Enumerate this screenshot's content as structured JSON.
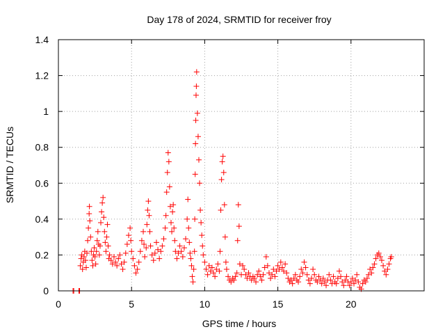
{
  "chart_data": {
    "type": "scatter",
    "title": "Day 178 of 2024, SRMTID for receiver froy",
    "xlabel": "GPS time / hours",
    "ylabel": "SRMTID / TECUs",
    "xlim": [
      0,
      25
    ],
    "ylim": [
      0,
      1.4
    ],
    "xticks": [
      0,
      5,
      10,
      15,
      20
    ],
    "xtick_labels": [
      "0",
      "5",
      "10",
      "15",
      "20"
    ],
    "yticks": [
      0,
      0.2,
      0.4,
      0.6,
      0.8,
      1.0,
      1.2,
      1.4
    ],
    "ytick_labels": [
      "0",
      "0.2",
      "0.4",
      "0.6",
      "0.8",
      "1",
      "1.2",
      "1.4"
    ],
    "grid": true,
    "marker": "plus",
    "color": "#ff0000",
    "series": [
      {
        "name": "SRMTID",
        "points": [
          [
            1.0,
            0.0
          ],
          [
            1.05,
            0.0
          ],
          [
            1.4,
            0.0
          ],
          [
            1.45,
            0.0
          ],
          [
            1.5,
            0.14
          ],
          [
            1.55,
            0.18
          ],
          [
            1.6,
            0.2
          ],
          [
            1.65,
            0.12
          ],
          [
            1.7,
            0.16
          ],
          [
            1.75,
            0.19
          ],
          [
            1.8,
            0.22
          ],
          [
            1.85,
            0.17
          ],
          [
            1.9,
            0.13
          ],
          [
            1.95,
            0.21
          ],
          [
            2.0,
            0.28
          ],
          [
            2.05,
            0.35
          ],
          [
            2.1,
            0.43
          ],
          [
            2.12,
            0.47
          ],
          [
            2.15,
            0.39
          ],
          [
            2.2,
            0.3
          ],
          [
            2.25,
            0.22
          ],
          [
            2.3,
            0.17
          ],
          [
            2.35,
            0.14
          ],
          [
            2.4,
            0.2
          ],
          [
            2.45,
            0.24
          ],
          [
            2.5,
            0.19
          ],
          [
            2.55,
            0.15
          ],
          [
            2.6,
            0.22
          ],
          [
            2.65,
            0.28
          ],
          [
            2.7,
            0.33
          ],
          [
            2.75,
            0.26
          ],
          [
            2.8,
            0.2
          ],
          [
            2.85,
            0.25
          ],
          [
            2.9,
            0.38
          ],
          [
            2.95,
            0.44
          ],
          [
            3.0,
            0.49
          ],
          [
            3.05,
            0.52
          ],
          [
            3.1,
            0.41
          ],
          [
            3.15,
            0.33
          ],
          [
            3.2,
            0.27
          ],
          [
            3.25,
            0.22
          ],
          [
            3.3,
            0.3
          ],
          [
            3.35,
            0.37
          ],
          [
            3.4,
            0.25
          ],
          [
            3.45,
            0.18
          ],
          [
            3.5,
            0.2
          ],
          [
            3.6,
            0.17
          ],
          [
            3.7,
            0.15
          ],
          [
            3.8,
            0.19
          ],
          [
            3.9,
            0.16
          ],
          [
            4.0,
            0.14
          ],
          [
            4.1,
            0.18
          ],
          [
            4.2,
            0.2
          ],
          [
            4.3,
            0.15
          ],
          [
            4.4,
            0.12
          ],
          [
            4.5,
            0.16
          ],
          [
            4.6,
            0.21
          ],
          [
            4.7,
            0.26
          ],
          [
            4.8,
            0.31
          ],
          [
            4.9,
            0.35
          ],
          [
            4.95,
            0.28
          ],
          [
            5.0,
            0.22
          ],
          [
            5.1,
            0.18
          ],
          [
            5.2,
            0.14
          ],
          [
            5.3,
            0.1
          ],
          [
            5.4,
            0.12
          ],
          [
            5.5,
            0.16
          ],
          [
            5.6,
            0.22
          ],
          [
            5.7,
            0.28
          ],
          [
            5.8,
            0.33
          ],
          [
            5.85,
            0.26
          ],
          [
            5.9,
            0.19
          ],
          [
            6.0,
            0.24
          ],
          [
            6.05,
            0.37
          ],
          [
            6.1,
            0.45
          ],
          [
            6.15,
            0.5
          ],
          [
            6.2,
            0.42
          ],
          [
            6.25,
            0.33
          ],
          [
            6.3,
            0.25
          ],
          [
            6.4,
            0.2
          ],
          [
            6.5,
            0.17
          ],
          [
            6.6,
            0.21
          ],
          [
            6.7,
            0.27
          ],
          [
            6.8,
            0.23
          ],
          [
            6.9,
            0.18
          ],
          [
            7.0,
            0.22
          ],
          [
            7.1,
            0.25
          ],
          [
            7.2,
            0.29
          ],
          [
            7.3,
            0.35
          ],
          [
            7.35,
            0.42
          ],
          [
            7.4,
            0.55
          ],
          [
            7.45,
            0.66
          ],
          [
            7.5,
            0.77
          ],
          [
            7.55,
            0.72
          ],
          [
            7.6,
            0.58
          ],
          [
            7.65,
            0.47
          ],
          [
            7.7,
            0.38
          ],
          [
            7.75,
            0.33
          ],
          [
            7.8,
            0.44
          ],
          [
            7.85,
            0.48
          ],
          [
            7.9,
            0.35
          ],
          [
            7.95,
            0.28
          ],
          [
            8.0,
            0.22
          ],
          [
            8.1,
            0.18
          ],
          [
            8.2,
            0.21
          ],
          [
            8.3,
            0.25
          ],
          [
            8.4,
            0.22
          ],
          [
            8.5,
            0.19
          ],
          [
            8.6,
            0.24
          ],
          [
            8.7,
            0.29
          ],
          [
            8.8,
            0.4
          ],
          [
            8.85,
            0.51
          ],
          [
            8.9,
            0.35
          ],
          [
            8.95,
            0.27
          ],
          [
            9.0,
            0.21
          ],
          [
            9.05,
            0.18
          ],
          [
            9.1,
            0.14
          ],
          [
            9.15,
            0.08
          ],
          [
            9.2,
            0.05
          ],
          [
            9.25,
            0.12
          ],
          [
            9.3,
            0.22
          ],
          [
            9.32,
            0.4
          ],
          [
            9.35,
            0.65
          ],
          [
            9.37,
            0.82
          ],
          [
            9.39,
            0.95
          ],
          [
            9.41,
            1.09
          ],
          [
            9.43,
            1.14
          ],
          [
            9.45,
            1.22
          ],
          [
            9.5,
            0.99
          ],
          [
            9.55,
            0.86
          ],
          [
            9.6,
            0.73
          ],
          [
            9.65,
            0.6
          ],
          [
            9.7,
            0.45
          ],
          [
            9.75,
            0.38
          ],
          [
            9.8,
            0.31
          ],
          [
            9.85,
            0.25
          ],
          [
            9.9,
            0.2
          ],
          [
            10.0,
            0.16
          ],
          [
            10.1,
            0.12
          ],
          [
            10.2,
            0.09
          ],
          [
            10.3,
            0.14
          ],
          [
            10.4,
            0.11
          ],
          [
            10.5,
            0.13
          ],
          [
            10.6,
            0.1
          ],
          [
            10.7,
            0.08
          ],
          [
            10.8,
            0.12
          ],
          [
            10.9,
            0.15
          ],
          [
            11.0,
            0.11
          ],
          [
            11.05,
            0.22
          ],
          [
            11.1,
            0.45
          ],
          [
            11.15,
            0.62
          ],
          [
            11.2,
            0.72
          ],
          [
            11.25,
            0.75
          ],
          [
            11.3,
            0.66
          ],
          [
            11.35,
            0.48
          ],
          [
            11.4,
            0.3
          ],
          [
            11.45,
            0.16
          ],
          [
            11.5,
            0.12
          ],
          [
            11.6,
            0.08
          ],
          [
            11.7,
            0.06
          ],
          [
            11.8,
            0.05
          ],
          [
            11.9,
            0.07
          ],
          [
            12.0,
            0.06
          ],
          [
            12.1,
            0.08
          ],
          [
            12.2,
            0.1
          ],
          [
            12.25,
            0.28
          ],
          [
            12.3,
            0.48
          ],
          [
            12.35,
            0.36
          ],
          [
            12.4,
            0.15
          ],
          [
            12.5,
            0.09
          ],
          [
            12.6,
            0.14
          ],
          [
            12.7,
            0.12
          ],
          [
            12.8,
            0.09
          ],
          [
            12.9,
            0.07
          ],
          [
            13.0,
            0.1
          ],
          [
            13.1,
            0.08
          ],
          [
            13.2,
            0.06
          ],
          [
            13.3,
            0.08
          ],
          [
            13.4,
            0.07
          ],
          [
            13.5,
            0.05
          ],
          [
            13.6,
            0.09
          ],
          [
            13.7,
            0.11
          ],
          [
            13.8,
            0.08
          ],
          [
            13.9,
            0.06
          ],
          [
            14.0,
            0.09
          ],
          [
            14.1,
            0.13
          ],
          [
            14.2,
            0.19
          ],
          [
            14.3,
            0.14
          ],
          [
            14.4,
            0.1
          ],
          [
            14.5,
            0.07
          ],
          [
            14.6,
            0.09
          ],
          [
            14.7,
            0.12
          ],
          [
            14.8,
            0.08
          ],
          [
            14.9,
            0.11
          ],
          [
            15.0,
            0.14
          ],
          [
            15.1,
            0.12
          ],
          [
            15.2,
            0.16
          ],
          [
            15.3,
            0.13
          ],
          [
            15.4,
            0.11
          ],
          [
            15.5,
            0.15
          ],
          [
            15.6,
            0.1
          ],
          [
            15.7,
            0.07
          ],
          [
            15.8,
            0.05
          ],
          [
            15.9,
            0.06
          ],
          [
            16.0,
            0.04
          ],
          [
            16.1,
            0.07
          ],
          [
            16.2,
            0.09
          ],
          [
            16.3,
            0.06
          ],
          [
            16.4,
            0.05
          ],
          [
            16.5,
            0.08
          ],
          [
            16.6,
            0.12
          ],
          [
            16.7,
            0.1
          ],
          [
            16.8,
            0.16
          ],
          [
            16.9,
            0.13
          ],
          [
            17.0,
            0.09
          ],
          [
            17.1,
            0.06
          ],
          [
            17.2,
            0.04
          ],
          [
            17.3,
            0.07
          ],
          [
            17.4,
            0.12
          ],
          [
            17.5,
            0.09
          ],
          [
            17.6,
            0.06
          ],
          [
            17.7,
            0.05
          ],
          [
            17.8,
            0.08
          ],
          [
            17.9,
            0.06
          ],
          [
            18.0,
            0.04
          ],
          [
            18.1,
            0.07
          ],
          [
            18.2,
            0.05
          ],
          [
            18.3,
            0.03
          ],
          [
            18.4,
            0.06
          ],
          [
            18.5,
            0.09
          ],
          [
            18.6,
            0.06
          ],
          [
            18.7,
            0.04
          ],
          [
            18.8,
            0.08
          ],
          [
            18.9,
            0.05
          ],
          [
            19.0,
            0.04
          ],
          [
            19.1,
            0.07
          ],
          [
            19.2,
            0.11
          ],
          [
            19.3,
            0.08
          ],
          [
            19.4,
            0.05
          ],
          [
            19.5,
            0.03
          ],
          [
            19.6,
            0.06
          ],
          [
            19.7,
            0.08
          ],
          [
            19.8,
            0.05
          ],
          [
            19.9,
            0.03
          ],
          [
            20.0,
            0.05
          ],
          [
            20.1,
            0.07
          ],
          [
            20.2,
            0.04
          ],
          [
            20.3,
            0.06
          ],
          [
            20.4,
            0.09
          ],
          [
            20.5,
            0.05
          ],
          [
            20.6,
            0.02
          ],
          [
            20.7,
            0.01
          ],
          [
            20.8,
            0.04
          ],
          [
            20.9,
            0.06
          ],
          [
            21.0,
            0.05
          ],
          [
            21.1,
            0.07
          ],
          [
            21.2,
            0.09
          ],
          [
            21.3,
            0.12
          ],
          [
            21.4,
            0.1
          ],
          [
            21.5,
            0.13
          ],
          [
            21.6,
            0.15
          ],
          [
            21.7,
            0.18
          ],
          [
            21.8,
            0.2
          ],
          [
            21.9,
            0.21
          ],
          [
            22.0,
            0.19
          ],
          [
            22.1,
            0.17
          ],
          [
            22.2,
            0.14
          ],
          [
            22.3,
            0.11
          ],
          [
            22.4,
            0.09
          ],
          [
            22.5,
            0.12
          ],
          [
            22.6,
            0.15
          ],
          [
            22.7,
            0.18
          ],
          [
            22.75,
            0.19
          ]
        ]
      }
    ]
  }
}
